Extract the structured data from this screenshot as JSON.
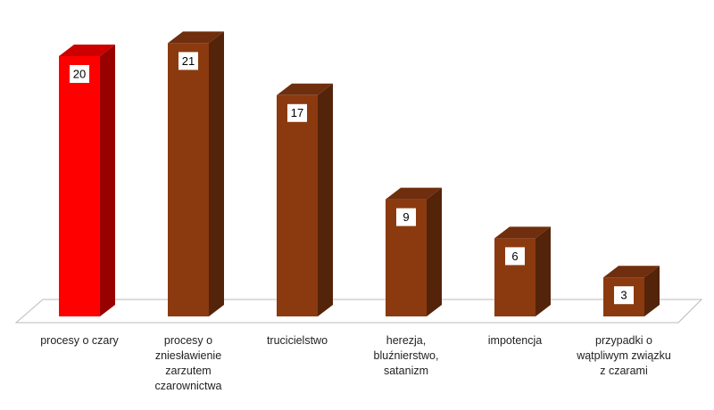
{
  "chart_data": {
    "type": "bar3d",
    "categories": [
      "procesy o czary",
      "procesy o zniesławienie zarzutem czarownictwa",
      "trucicielstwo",
      "herezja, bluźnierstwo, satanizm",
      "impotencja",
      "przypadki o wątpliwym związku z czarami"
    ],
    "values": [
      20,
      21,
      17,
      9,
      6,
      3
    ],
    "colors": [
      "#ff0000",
      "#8b3a10",
      "#8b3a10",
      "#8b3a10",
      "#8b3a10",
      "#8b3a10"
    ]
  }
}
